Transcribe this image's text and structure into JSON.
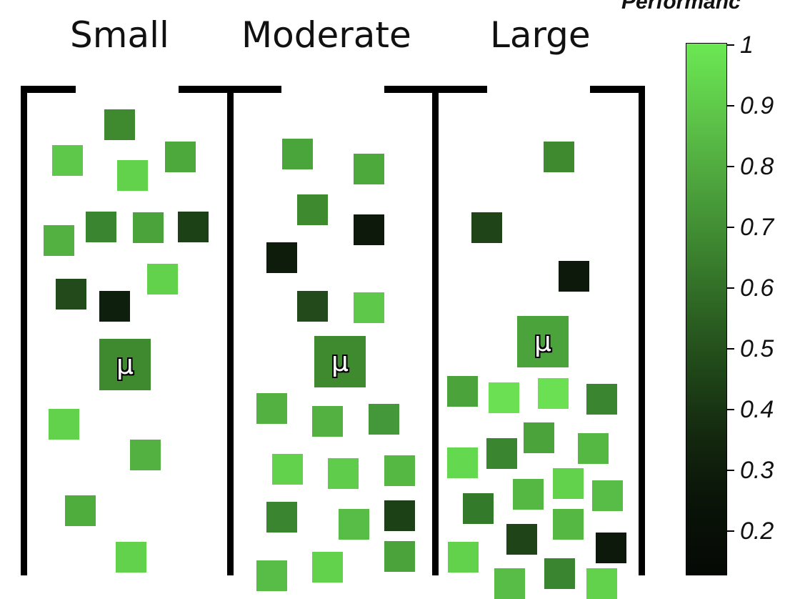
{
  "title": "Performanc",
  "columns": [
    {
      "label": "Small"
    },
    {
      "label": "Moderate"
    },
    {
      "label": "Large"
    }
  ],
  "mean_label": "μ",
  "colorbar": {
    "ticks": [
      "1",
      "0.9",
      "0.8",
      "0.7",
      "0.6",
      "0.5",
      "0.4",
      "0.3",
      "0.2"
    ],
    "color_high": "#6be853",
    "color_low": "#050905"
  }
}
